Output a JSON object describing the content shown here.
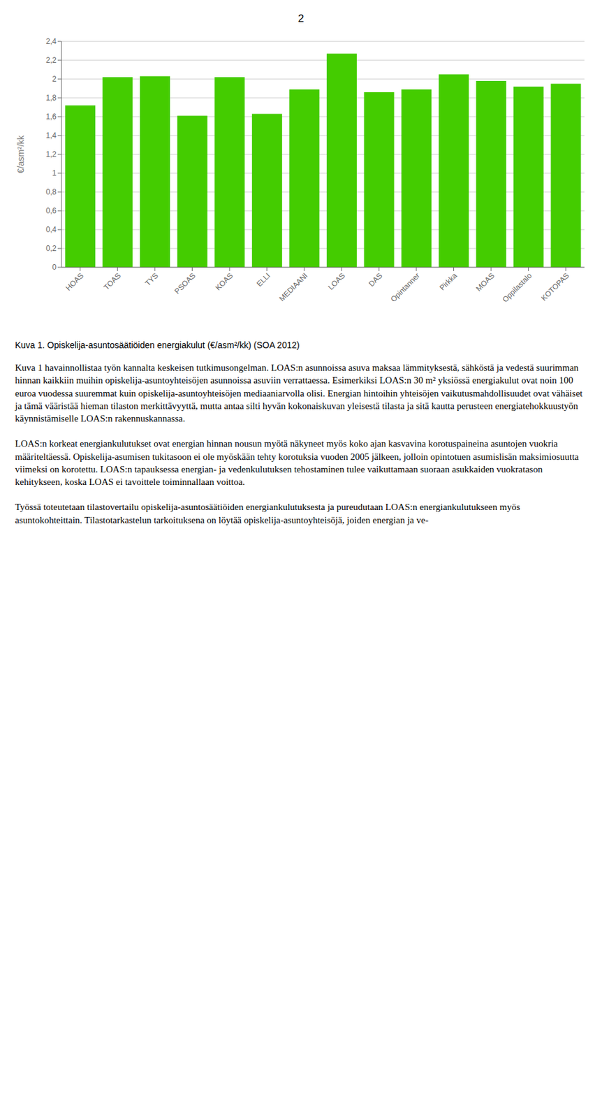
{
  "chart_data": {
    "type": "bar",
    "title": "Kuva 1. Opiskelija-asuntosäätiöiden energiakulut (€/asm²/kk) (SOA 2012)",
    "ylabel": "€/asm²/kk",
    "categories": [
      "HOAS",
      "TOAS",
      "TYS",
      "PSOAS",
      "KOAS",
      "ELLI",
      "MEDIAANI",
      "LOAS",
      "DAS",
      "Opintanner",
      "Pirkka",
      "MOAS",
      "Oppilastalo",
      "KOTOPAS"
    ],
    "values": [
      1.72,
      2.02,
      2.03,
      1.61,
      2.02,
      1.63,
      1.89,
      2.27,
      1.86,
      1.89,
      2.05,
      1.98,
      1.92,
      1.95
    ],
    "color": "#44cc00",
    "ylim": [
      0,
      2.4
    ],
    "yticks": [
      0,
      {
        "value": 0.2,
        "label": "0,2"
      },
      {
        "value": 0.4,
        "label": "0,4"
      },
      {
        "value": 0.6,
        "label": "0,6"
      },
      {
        "value": 0.8,
        "label": "0,8"
      },
      1,
      {
        "value": 1.2,
        "label": "1,2"
      },
      {
        "value": 1.4,
        "label": "1,4"
      },
      {
        "value": 1.6,
        "label": "1,6"
      },
      {
        "value": 1.8,
        "label": "1,8"
      },
      2,
      {
        "value": 2.2,
        "label": "2,2"
      },
      {
        "value": 2.4,
        "label": "2,4"
      }
    ],
    "grid": true,
    "annotations": [
      "2",
      "Kuva 1 havainnollistaa työn kannalta keskeisen tutkimusongelman. LOAS:n asunnoissa asuva maksaa lämmityksestä, sähköstä ja vedestä suurimman hinnan kaikkiin muihin opiskelija-asuntoyhteisöjen asunnoissa asuviin verrattaessa. Esimerkiksi LOAS:n 30 m² yksiössä energiakulut ovat noin 100 euroa vuodessa suuremmat kuin opiskelija-asuntoyhteisöjen mediaaniarvolla olisi. Energian hintoihin yhteisöjen vaikutusmahdollisuudet ovat vähäiset ja tämä vääristää hieman tilaston merkittävyyttä, mutta antaa silti hyvän kokonaiskuvan yleisestä tilasta ja sitä kautta perusteen energiatehokkuustyön käynnistämiselle LOAS:n rakennuskannassa.",
      "LOAS:n korkeat energiankulutukset ovat energian hinnan nousun myötä näkyneet myös koko ajan kasvavina korotuspaineina asuntojen vuokria määriteltäessä. Opiskelija-asumisen tukitasoon ei ole myöskään tehty korotuksia vuoden 2005 jälkeen, jolloin opintotuen asumislisän maksimiosuutta viimeksi on korotettu. LOAS:n tapauksessa energian- ja vedenkulutuksen tehostaminen tulee vaikuttamaan suoraan asukkaiden vuokratason kehitykseen, koska LOAS ei tavoittele toiminnallaan voittoa.",
      "Työssä toteutetaan tilastovertailu opiskelija-asuntosäätiöiden energiankulutuksesta ja pureudutaan LOAS:n energiankulutukseen myös asuntokohteittain. Tilastotarkastelun tarkoituksena on löytää opiskelija-asuntoyhteisöjä, joiden energian ja ve-"
    ]
  }
}
